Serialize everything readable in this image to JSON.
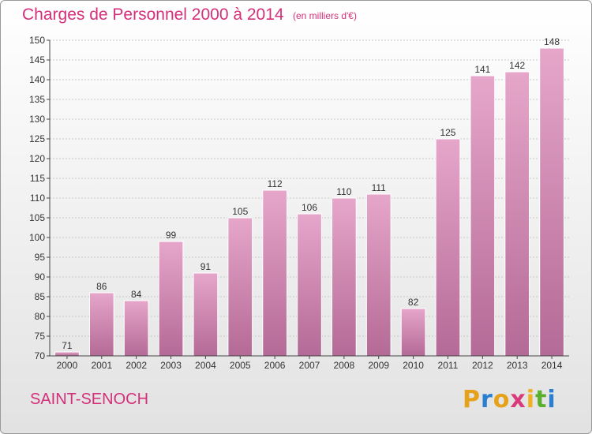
{
  "header": {
    "title": "Charges de Personnel 2000 à 2014",
    "unit": "(en milliers d'€)"
  },
  "footer": {
    "commune": "SAINT-SENOCH",
    "logo_letters": [
      "P",
      "r",
      "o",
      "x",
      "i",
      "t",
      "i"
    ],
    "logo_colors": [
      "#e6a11a",
      "#2a7fd0",
      "#e6a11a",
      "#d93a7a",
      "#f0b020",
      "#5ab02e",
      "#2a7fd0"
    ]
  },
  "colors": {
    "title": "#d4307a",
    "bar_top": "#e6a6ca",
    "bar_bottom": "#b46a96"
  },
  "chart_data": {
    "type": "bar",
    "title": "Charges de Personnel 2000 à 2014",
    "subtitle": "(en milliers d'€)",
    "categories": [
      "2000",
      "2001",
      "2002",
      "2003",
      "2004",
      "2005",
      "2006",
      "2007",
      "2008",
      "2009",
      "2010",
      "2011",
      "2012",
      "2013",
      "2014"
    ],
    "values": [
      71,
      86,
      84,
      99,
      91,
      105,
      112,
      106,
      110,
      111,
      82,
      125,
      141,
      142,
      148
    ],
    "ylim": [
      70,
      150
    ],
    "yticks": [
      70,
      75,
      80,
      85,
      90,
      95,
      100,
      105,
      110,
      115,
      120,
      125,
      130,
      135,
      140,
      145,
      150
    ],
    "grid": true,
    "xlabel": "",
    "ylabel": ""
  }
}
